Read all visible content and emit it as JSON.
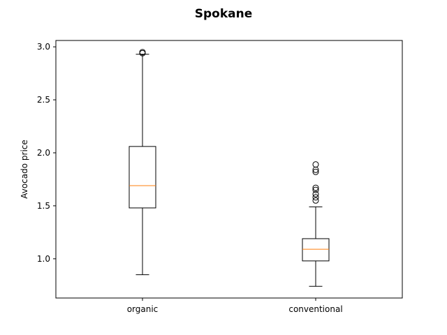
{
  "chart_data": {
    "type": "boxplot",
    "title": "Spokane",
    "xlabel": "",
    "ylabel": "Avocado price",
    "ylim": [
      0.63,
      3.06
    ],
    "yticks": [
      "1.0",
      "1.5",
      "2.0",
      "2.5",
      "3.0"
    ],
    "categories": [
      "organic",
      "conventional"
    ],
    "boxes": [
      {
        "category": "organic",
        "whislo": 0.85,
        "q1": 1.48,
        "median": 1.69,
        "q3": 2.06,
        "whishi": 2.93,
        "fliers": [
          2.94,
          2.95
        ]
      },
      {
        "category": "conventional",
        "whislo": 0.74,
        "q1": 0.98,
        "median": 1.09,
        "q3": 1.19,
        "whishi": 1.49,
        "fliers": [
          1.55,
          1.58,
          1.61,
          1.65,
          1.67,
          1.82,
          1.84,
          1.89
        ]
      }
    ],
    "grid": false,
    "colors": {
      "box": "#000000",
      "median": "#ff7f0e",
      "flier": "#000000"
    }
  }
}
